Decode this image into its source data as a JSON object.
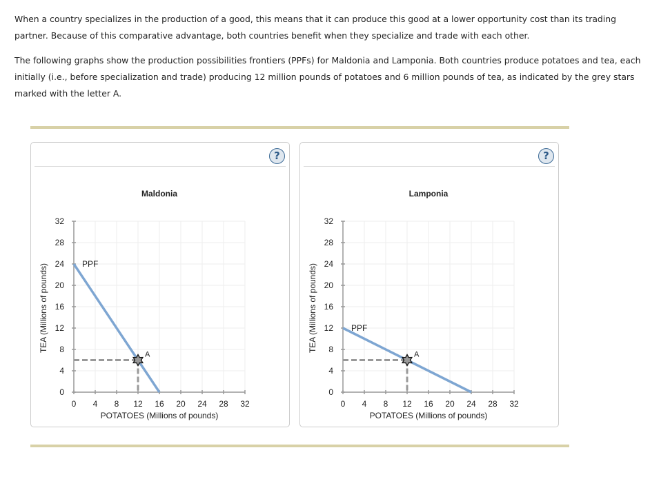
{
  "intro": {
    "paragraph1": "When a country specializes in the production of a good, this means that it can produce this good at a lower opportunity cost than its trading partner. Because of this comparative advantage, both countries benefit when they specialize and trade with each other.",
    "paragraph2": "The following graphs show the production possibilities frontiers (PPFs) for Maldonia and Lamponia. Both countries produce potatoes and tea, each initially (i.e., before specialization and trade) producing 12 million pounds of potatoes and 6 million pounds of tea, as indicated by the grey stars marked with the letter A."
  },
  "help_label": "?",
  "colors": {
    "ppf": "#7ea6d2",
    "rule": "#d8d1a7",
    "star": "#999999",
    "dashed": "#999999"
  },
  "chart_data": [
    {
      "type": "line",
      "title": "Maldonia",
      "xlabel": "POTATOES (Millions of pounds)",
      "ylabel": "TEA (Millions of pounds)",
      "xlim": [
        0,
        32
      ],
      "ylim": [
        0,
        32
      ],
      "xticks": [
        "0",
        "4",
        "8",
        "12",
        "16",
        "20",
        "24",
        "28",
        "32"
      ],
      "yticks": [
        "0",
        "4",
        "8",
        "12",
        "16",
        "20",
        "24",
        "28",
        "32"
      ],
      "grid": true,
      "series": [
        {
          "name": "PPF",
          "points": [
            [
              0,
              24
            ],
            [
              16,
              0
            ]
          ]
        }
      ],
      "point": {
        "label": "A",
        "x": 12,
        "y": 6
      }
    },
    {
      "type": "line",
      "title": "Lamponia",
      "xlabel": "POTATOES (Millions of pounds)",
      "ylabel": "TEA (Millions of pounds)",
      "xlim": [
        0,
        32
      ],
      "ylim": [
        0,
        32
      ],
      "xticks": [
        "0",
        "4",
        "8",
        "12",
        "16",
        "20",
        "24",
        "28",
        "32"
      ],
      "yticks": [
        "0",
        "4",
        "8",
        "12",
        "16",
        "20",
        "24",
        "28",
        "32"
      ],
      "grid": true,
      "series": [
        {
          "name": "PPF",
          "points": [
            [
              0,
              12
            ],
            [
              24,
              0
            ]
          ]
        }
      ],
      "point": {
        "label": "A",
        "x": 12,
        "y": 6
      }
    }
  ]
}
